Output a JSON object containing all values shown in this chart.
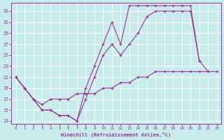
{
  "xlabel": "Windchill (Refroidissement éolien,°C)",
  "background_color": "#c8ecec",
  "grid_color": "#ffffff",
  "line_color": "#993399",
  "xlim": [
    -0.5,
    23.5
  ],
  "ylim": [
    12.5,
    34.5
  ],
  "yticks": [
    13,
    15,
    17,
    19,
    21,
    23,
    25,
    27,
    29,
    31,
    33
  ],
  "xticks": [
    0,
    1,
    2,
    3,
    4,
    5,
    6,
    7,
    8,
    9,
    10,
    11,
    12,
    13,
    14,
    15,
    16,
    17,
    18,
    19,
    20,
    21,
    22,
    23
  ],
  "line_top_x": [
    0,
    1,
    2,
    3,
    4,
    5,
    6,
    7,
    8,
    9,
    10,
    11,
    12,
    13,
    14,
    15,
    16,
    17,
    18,
    19,
    20,
    21
  ],
  "line_top_y": [
    21,
    19,
    17,
    15,
    15,
    14,
    14,
    13,
    19,
    23,
    27,
    31,
    27,
    34,
    34,
    34,
    34,
    34,
    34,
    34,
    34,
    24
  ],
  "line_mid_x": [
    0,
    1,
    2,
    3,
    4,
    5,
    6,
    7,
    8,
    9,
    10,
    11,
    12,
    13,
    14,
    15,
    16,
    17,
    18,
    19,
    20,
    21,
    22
  ],
  "line_mid_y": [
    21,
    19,
    17,
    15,
    15,
    14,
    14,
    13,
    17,
    21,
    25,
    27,
    25,
    27,
    29,
    32,
    33,
    33,
    33,
    33,
    33,
    24,
    22
  ],
  "line_bot_x": [
    0,
    1,
    2,
    3,
    4,
    5,
    6,
    7,
    8,
    9,
    10,
    11,
    12,
    13,
    14,
    15,
    16,
    17,
    18,
    19,
    20,
    21,
    22,
    23
  ],
  "line_bot_y": [
    21,
    19,
    17,
    16,
    17,
    17,
    17,
    18,
    18,
    18,
    19,
    19,
    20,
    20,
    21,
    21,
    22,
    22,
    22,
    22,
    22,
    22,
    22,
    22
  ]
}
